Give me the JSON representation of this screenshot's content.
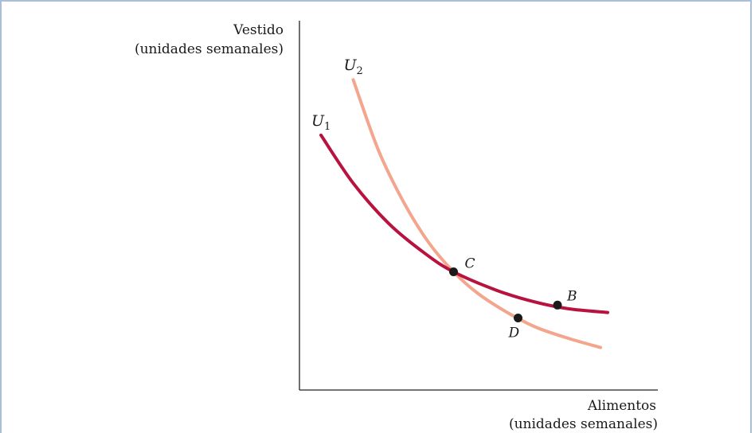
{
  "chart_data": {
    "type": "line",
    "ylabel_line1": "Vestido",
    "ylabel_line2": "(unidades semanales)",
    "xlabel_line1": "Alimentos",
    "xlabel_line2": "(unidades semanales)",
    "xlim": [
      0,
      10
    ],
    "ylim": [
      0,
      10
    ],
    "series": [
      {
        "name": "U",
        "subscript": "1",
        "color": "#b8123f",
        "x": [
          0.6,
          1.5,
          2.5,
          3.5,
          4.3,
          5.5,
          6.5,
          7.5,
          8.6
        ],
        "y": [
          6.9,
          5.6,
          4.5,
          3.7,
          3.2,
          2.7,
          2.4,
          2.2,
          2.1
        ]
      },
      {
        "name": "U",
        "subscript": "2",
        "color": "#f3a58d",
        "x": [
          1.5,
          2.2,
          2.9,
          3.6,
          4.3,
          5.0,
          5.8,
          6.6,
          7.5,
          8.4
        ],
        "y": [
          8.4,
          6.5,
          5.1,
          4.0,
          3.2,
          2.6,
          2.1,
          1.7,
          1.4,
          1.15
        ]
      }
    ],
    "points": [
      {
        "label": "C",
        "x": 4.3,
        "y": 3.2
      },
      {
        "label": "B",
        "x": 7.2,
        "y": 2.3
      },
      {
        "label": "D",
        "x": 6.1,
        "y": 1.95
      }
    ]
  }
}
